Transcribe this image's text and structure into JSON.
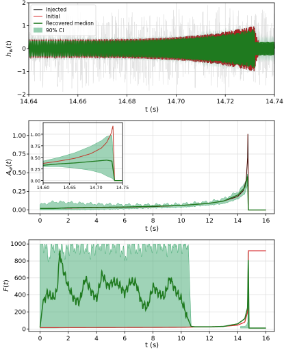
{
  "chart_data": [
    {
      "type": "line",
      "xlabel": "t (s)",
      "ylabel": "h_w(t)",
      "xlim": [
        14.64,
        14.74
      ],
      "ylim": [
        -2,
        2
      ],
      "xticks": [
        14.64,
        14.66,
        14.68,
        14.7,
        14.72,
        14.74
      ],
      "xtick_labels": [
        "14.64",
        "14.66",
        "14.68",
        "14.70",
        "14.72",
        "14.74"
      ],
      "yticks": [
        -2,
        -1,
        0,
        1,
        2
      ],
      "ytick_labels": [
        "−2",
        "−1",
        "0",
        "1",
        "2"
      ],
      "grid": true,
      "legend_position": "top-left",
      "legend": [
        "Injected",
        "Initial",
        "Recovered median",
        "90% CI"
      ],
      "series": [
        {
          "name": "Injected",
          "color": "#000000",
          "t_merger": 14.732,
          "amplitude_start": 0.4,
          "amplitude_peak": 1.0
        },
        {
          "name": "Initial",
          "color": "#e05050",
          "t_merger": 14.732,
          "amplitude_start": 0.4,
          "amplitude_peak": 1.0
        },
        {
          "name": "Recovered median",
          "color": "#1f7a1f",
          "amplitude_start": 0.4,
          "amplitude_end": 0.3
        },
        {
          "name": "90% CI",
          "color": "#3fa870",
          "width": 0.3
        }
      ],
      "data_noise": {
        "color": "#dcdcdc",
        "range": [
          -2,
          2
        ]
      }
    },
    {
      "type": "line",
      "xlabel": "t (s)",
      "ylabel": "A_w(t)",
      "xlim": [
        -0.8,
        16.6
      ],
      "ylim": [
        -0.05,
        1.2
      ],
      "xticks": [
        0,
        2,
        4,
        6,
        8,
        10,
        12,
        14,
        16
      ],
      "xtick_labels": [
        "0",
        "2",
        "4",
        "6",
        "8",
        "10",
        "12",
        "14",
        "16"
      ],
      "yticks": [
        0.0,
        0.25,
        0.5,
        0.75,
        1.0
      ],
      "ytick_labels": [
        "0.00",
        "0.25",
        "0.50",
        "0.75",
        "1.00"
      ],
      "grid": true,
      "series": [
        {
          "name": "Injected",
          "color": "#000000",
          "t": [
            0,
            2,
            4,
            6,
            8,
            10,
            12,
            13,
            14,
            14.4,
            14.6,
            14.7,
            14.73,
            14.75,
            16
          ],
          "values": [
            0.02,
            0.025,
            0.03,
            0.035,
            0.045,
            0.06,
            0.09,
            0.12,
            0.18,
            0.26,
            0.4,
            0.7,
            1.18,
            0.0,
            0.0
          ]
        },
        {
          "name": "Recovered median",
          "color": "#1f7a1f",
          "t": [
            0,
            1,
            2,
            4,
            6,
            8,
            10,
            12,
            13,
            14,
            14.5,
            14.7,
            14.75,
            16
          ],
          "values": [
            0.02,
            0.02,
            0.03,
            0.035,
            0.04,
            0.05,
            0.06,
            0.09,
            0.12,
            0.2,
            0.3,
            0.45,
            0.0,
            0.0
          ]
        },
        {
          "name": "90% CI upper",
          "color": "#3fa870",
          "t": [
            0,
            0.5,
            1,
            2,
            3,
            4,
            6,
            8,
            10,
            12,
            13,
            14,
            14.5,
            14.7,
            14.75
          ],
          "values": [
            0.07,
            0.09,
            0.11,
            0.1,
            0.09,
            0.08,
            0.07,
            0.07,
            0.08,
            0.11,
            0.15,
            0.24,
            0.35,
            0.5,
            0.0
          ]
        },
        {
          "name": "90% CI lower",
          "color": "#3fa870",
          "t": [
            0,
            1,
            2,
            4,
            6,
            8,
            10,
            12,
            13,
            14,
            14.5,
            14.7,
            14.75
          ],
          "values": [
            0.0,
            0.0,
            0.005,
            0.01,
            0.02,
            0.03,
            0.04,
            0.07,
            0.09,
            0.15,
            0.22,
            0.35,
            0.0
          ]
        }
      ],
      "inset": {
        "xlim": [
          14.6,
          14.75
        ],
        "ylim": [
          -0.05,
          1.25
        ],
        "xticks": [
          14.6,
          14.65,
          14.7,
          14.75
        ],
        "xtick_labels": [
          "14.60",
          "14.65",
          "14.70",
          "14.75"
        ],
        "yticks": [
          0.0,
          0.25,
          0.5,
          0.75,
          1.0
        ],
        "ytick_labels": [
          "0.00",
          "0.25",
          "0.50",
          "0.75",
          "1.00"
        ],
        "initial": {
          "t": [
            14.6,
            14.63,
            14.66,
            14.69,
            14.71,
            14.72,
            14.728,
            14.732,
            14.735,
            14.75
          ],
          "values": [
            0.37,
            0.42,
            0.48,
            0.58,
            0.7,
            0.82,
            1.0,
            1.18,
            0.0,
            0.0
          ]
        },
        "median": {
          "t": [
            14.6,
            14.63,
            14.66,
            14.69,
            14.71,
            14.72,
            14.73,
            14.735,
            14.75
          ],
          "values": [
            0.33,
            0.36,
            0.38,
            0.41,
            0.43,
            0.44,
            0.42,
            0.0,
            0.0
          ]
        },
        "upper": {
          "t": [
            14.6,
            14.63,
            14.66,
            14.69,
            14.71,
            14.72,
            14.73,
            14.735
          ],
          "values": [
            0.42,
            0.5,
            0.6,
            0.74,
            0.86,
            0.95,
            0.98,
            0.0
          ]
        },
        "lower": {
          "t": [
            14.6,
            14.63,
            14.66,
            14.69,
            14.71,
            14.72,
            14.73,
            14.735
          ],
          "values": [
            0.3,
            0.3,
            0.27,
            0.22,
            0.16,
            0.1,
            0.05,
            0.0
          ]
        }
      }
    },
    {
      "type": "line",
      "xlabel": "t (s)",
      "ylabel": "F(t)",
      "xlim": [
        -0.8,
        16.6
      ],
      "ylim": [
        -30,
        1050
      ],
      "xticks": [
        0,
        2,
        4,
        6,
        8,
        10,
        12,
        14,
        16
      ],
      "xtick_labels": [
        "0",
        "2",
        "4",
        "6",
        "8",
        "10",
        "12",
        "14",
        "16"
      ],
      "yticks": [
        0,
        200,
        400,
        600,
        800,
        1000
      ],
      "ytick_labels": [
        "0",
        "200",
        "400",
        "600",
        "800",
        "1000"
      ],
      "grid": true,
      "series": [
        {
          "name": "Initial",
          "color": "#e05050",
          "t": [
            0,
            2,
            4,
            6,
            8,
            10,
            12,
            13,
            14,
            14.5,
            14.7,
            14.73,
            14.75,
            16
          ],
          "values": [
            15,
            16,
            17,
            18,
            19,
            21,
            25,
            30,
            45,
            80,
            200,
            550,
            920,
            920
          ]
        },
        {
          "name": "Recovered median",
          "color": "#1f7a1f",
          "t": [
            0,
            0.2,
            0.5,
            0.8,
            1.0,
            1.2,
            1.4,
            1.6,
            2.0,
            2.4,
            2.8,
            3.2,
            3.6,
            4.0,
            4.4,
            4.8,
            5.2,
            5.6,
            6.0,
            6.4,
            6.8,
            7.2,
            7.6,
            8.0,
            8.4,
            8.8,
            9.2,
            9.6,
            10.0,
            10.4,
            10.7,
            11.0,
            12,
            13,
            14,
            14.5,
            14.7,
            14.75,
            14.8,
            16
          ],
          "values": [
            20,
            300,
            420,
            380,
            370,
            450,
            900,
            720,
            500,
            350,
            320,
            600,
            450,
            350,
            650,
            500,
            560,
            520,
            420,
            560,
            540,
            300,
            250,
            500,
            420,
            380,
            600,
            450,
            350,
            150,
            30,
            25,
            25,
            30,
            60,
            120,
            250,
            850,
            10,
            10
          ]
        },
        {
          "name": "90% CI upper",
          "color": "#3fa870",
          "t": [
            0,
            0.3,
            0.6,
            1.0,
            1.4,
            1.8,
            2.2,
            2.6,
            3.0,
            3.5,
            4.0,
            4.5,
            5.0,
            5.5,
            6.0,
            6.5,
            7.0,
            7.5,
            8.0,
            8.5,
            9.0,
            9.5,
            10.0,
            10.5,
            10.7
          ],
          "values": [
            980,
            1000,
            850,
            1000,
            950,
            900,
            990,
            950,
            1000,
            900,
            980,
            1000,
            950,
            1000,
            850,
            1000,
            920,
            1000,
            980,
            1000,
            950,
            1000,
            980,
            1000,
            40
          ]
        },
        {
          "name": "90% CI lower",
          "color": "#3fa870",
          "t": [
            0,
            1,
            2,
            4,
            6,
            8,
            10,
            10.7
          ],
          "values": [
            10,
            10,
            12,
            12,
            14,
            14,
            16,
            20
          ]
        }
      ]
    }
  ]
}
